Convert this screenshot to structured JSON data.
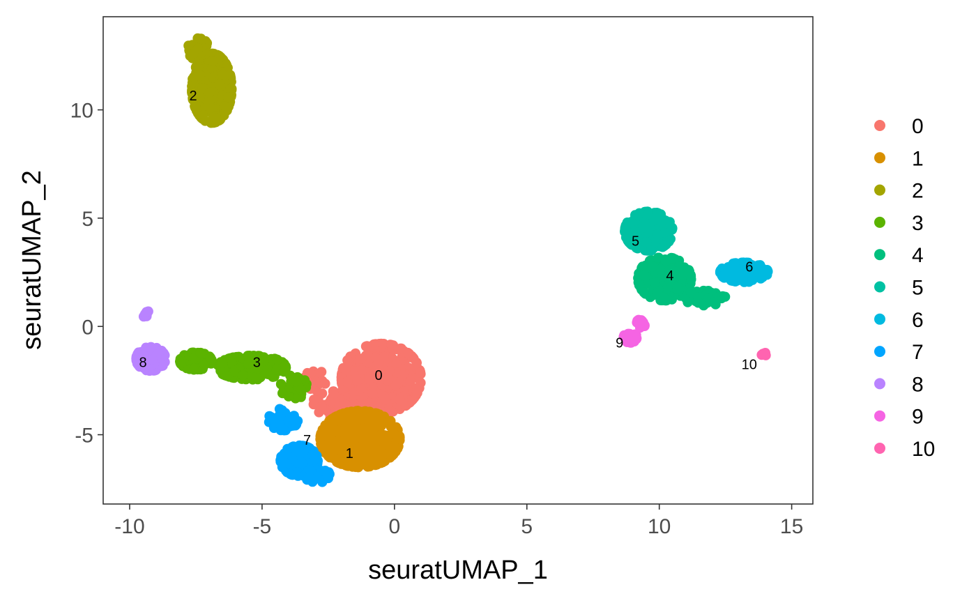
{
  "chart_data": {
    "type": "scatter",
    "xlabel": "seuratUMAP_1",
    "ylabel": "seuratUMAP_2",
    "xlim": [
      -11,
      15.8
    ],
    "ylim": [
      -8.2,
      14.3
    ],
    "xticks": [
      -10,
      -5,
      0,
      5,
      10,
      15
    ],
    "yticks": [
      -5,
      0,
      5,
      10
    ],
    "xtick_labels": [
      "-10",
      "-5",
      "0",
      "5",
      "10",
      "15"
    ],
    "ytick_labels": [
      "-5",
      "0",
      "5",
      "10"
    ],
    "grid": false,
    "legend_position": "right",
    "series": [
      {
        "name": "0",
        "color": "#F8766D",
        "label_pos": [
          -0.6,
          -2.3
        ],
        "blobs": [
          [
            -0.5,
            -2.4,
            1.5,
            1.6,
            420
          ],
          [
            -2.3,
            -3.6,
            0.8,
            0.6,
            60
          ],
          [
            -3.0,
            -2.5,
            0.4,
            0.5,
            25
          ]
        ]
      },
      {
        "name": "1",
        "color": "#D89000",
        "label_pos": [
          -1.7,
          -5.9
        ],
        "blobs": [
          [
            -1.3,
            -5.2,
            1.5,
            1.3,
            380
          ]
        ]
      },
      {
        "name": "2",
        "color": "#A3A500",
        "label_pos": [
          -7.6,
          10.6
        ],
        "blobs": [
          [
            -6.9,
            11.0,
            0.75,
            1.6,
            320
          ],
          [
            -7.4,
            12.8,
            0.4,
            0.5,
            40
          ]
        ]
      },
      {
        "name": "3",
        "color": "#5BB300",
        "label_pos": [
          -5.2,
          -1.7
        ],
        "blobs": [
          [
            -5.4,
            -1.9,
            1.3,
            0.55,
            220
          ],
          [
            -7.5,
            -1.6,
            0.6,
            0.4,
            60
          ],
          [
            -3.8,
            -2.8,
            0.5,
            0.55,
            50
          ]
        ]
      },
      {
        "name": "4",
        "color": "#00BF7D",
        "label_pos": [
          10.4,
          2.3
        ],
        "blobs": [
          [
            10.2,
            2.2,
            1.0,
            1.0,
            260
          ],
          [
            11.7,
            1.3,
            0.8,
            0.35,
            60
          ]
        ]
      },
      {
        "name": "5",
        "color": "#00C1A3",
        "label_pos": [
          9.1,
          3.9
        ],
        "blobs": [
          [
            9.6,
            4.4,
            0.9,
            0.9,
            230
          ]
        ]
      },
      {
        "name": "6",
        "color": "#00BAE0",
        "label_pos": [
          13.4,
          2.7
        ],
        "blobs": [
          [
            13.2,
            2.5,
            0.9,
            0.45,
            180
          ]
        ]
      },
      {
        "name": "7",
        "color": "#00A5FF",
        "label_pos": [
          -3.3,
          -5.3
        ],
        "blobs": [
          [
            -3.6,
            -6.2,
            0.7,
            0.7,
            140
          ],
          [
            -4.2,
            -4.3,
            0.55,
            0.5,
            60
          ],
          [
            -2.9,
            -6.9,
            0.5,
            0.3,
            40
          ]
        ]
      },
      {
        "name": "8",
        "color": "#B983FF",
        "label_pos": [
          -9.5,
          -1.7
        ],
        "blobs": [
          [
            -9.2,
            -1.5,
            0.55,
            0.55,
            140
          ],
          [
            -9.4,
            0.6,
            0.12,
            0.18,
            6
          ]
        ]
      },
      {
        "name": "9",
        "color": "#F564E3",
        "label_pos": [
          8.5,
          -0.8
        ],
        "blobs": [
          [
            8.9,
            -0.5,
            0.25,
            0.25,
            25
          ],
          [
            9.3,
            0.1,
            0.15,
            0.3,
            15
          ]
        ]
      },
      {
        "name": "10",
        "color": "#FF64B0",
        "label_pos": [
          13.4,
          -1.8
        ],
        "blobs": [
          [
            13.95,
            -1.3,
            0.1,
            0.1,
            8
          ]
        ]
      }
    ]
  }
}
